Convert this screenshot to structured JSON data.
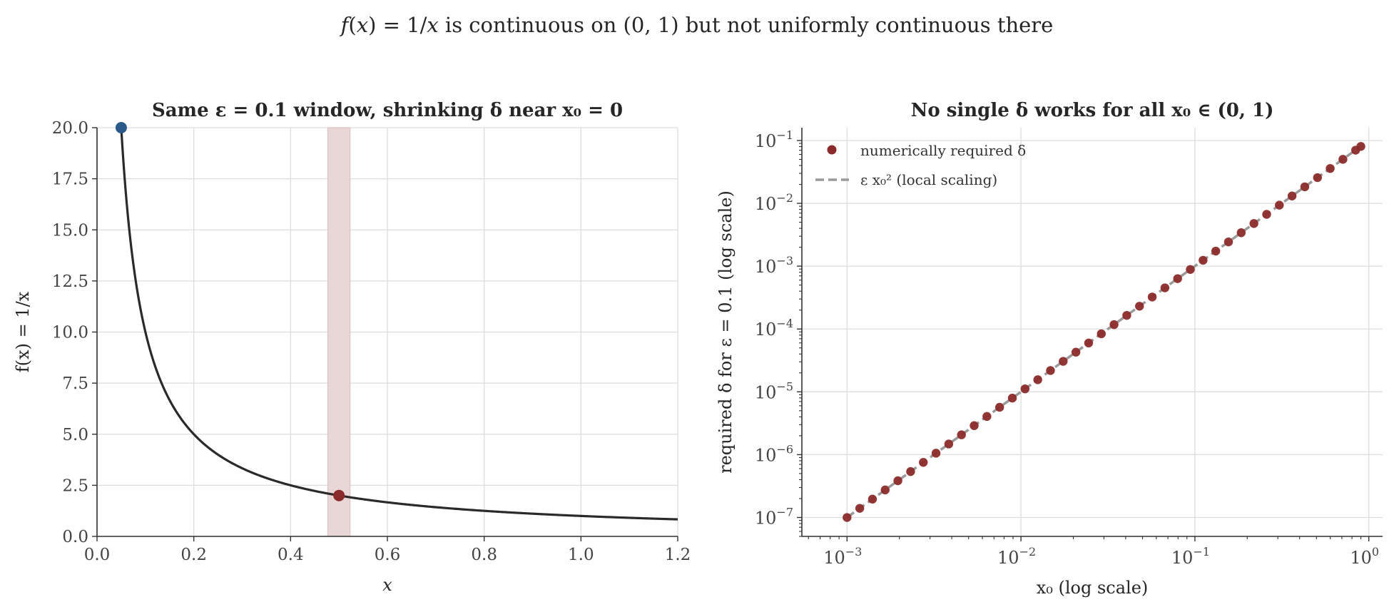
{
  "figure": {
    "suptitle": "f(x) = 1/x is continuous on (0, 1) but not uniformly continuous there"
  },
  "chart_data": [
    {
      "type": "line",
      "title": "Same ε = 0.1 window, shrinking δ near x₀ = 0",
      "xlabel": "x",
      "ylabel": "f(x) = 1/x",
      "xlim": [
        0.0,
        1.2
      ],
      "ylim": [
        0.0,
        20.0
      ],
      "xticks": [
        0.0,
        0.2,
        0.4,
        0.6,
        0.8,
        1.0,
        1.2
      ],
      "xtick_labels": [
        "0.0",
        "0.2",
        "0.4",
        "0.6",
        "0.8",
        "1.0",
        "1.2"
      ],
      "yticks": [
        0.0,
        2.5,
        5.0,
        7.5,
        10.0,
        12.5,
        15.0,
        17.5,
        20.0
      ],
      "ytick_labels": [
        "0.0",
        "2.5",
        "5.0",
        "7.5",
        "10.0",
        "12.5",
        "15.0",
        "17.5",
        "20.0"
      ],
      "grid": true,
      "curve": {
        "function": "1/x",
        "x_start": 0.05,
        "x_end": 1.2,
        "color": "#2a2a2a"
      },
      "band": {
        "x_start": 0.477,
        "x_end": 0.523,
        "color": "#e9d6d7"
      },
      "points": [
        {
          "x": 0.05,
          "y": 20.0,
          "color": "#2b5a8a"
        },
        {
          "x": 0.5,
          "y": 2.0,
          "color": "#8b2a2a"
        }
      ]
    },
    {
      "type": "scatter",
      "title": "No single δ works for all x₀ ∈ (0, 1)",
      "xlabel": "x₀ (log scale)",
      "ylabel": "required δ for ε = 0.1 (log scale)",
      "xscale": "log",
      "yscale": "log",
      "xlim": [
        0.00055,
        1.2
      ],
      "ylim": [
        5e-08,
        0.16
      ],
      "xticks": [
        0.001,
        0.01,
        0.1,
        1.0
      ],
      "xtick_labels": [
        {
          "base": "10",
          "exp": "−3"
        },
        {
          "base": "10",
          "exp": "−2"
        },
        {
          "base": "10",
          "exp": "−1"
        },
        {
          "base": "10",
          "exp": "0"
        }
      ],
      "yticks": [
        1e-07,
        1e-06,
        1e-05,
        0.0001,
        0.001,
        0.01,
        0.1
      ],
      "ytick_labels": [
        {
          "base": "10",
          "exp": "−7"
        },
        {
          "base": "10",
          "exp": "−6"
        },
        {
          "base": "10",
          "exp": "−5"
        },
        {
          "base": "10",
          "exp": "−4"
        },
        {
          "base": "10",
          "exp": "−3"
        },
        {
          "base": "10",
          "exp": "−2"
        },
        {
          "base": "10",
          "exp": "−1"
        }
      ],
      "grid": true,
      "legend_position": "upper-left",
      "series": [
        {
          "name": "numerically required δ",
          "kind": "markers",
          "color": "#8b2a2a",
          "x": [
            0.001,
            0.0011833,
            0.0014003,
            0.001657,
            0.0019608,
            0.0023202,
            0.0027456,
            0.003249,
            0.0038447,
            0.0045495,
            0.0053836,
            0.0063706,
            0.0075385,
            0.0089206,
            0.010556,
            0.012491,
            0.014781,
            0.017491,
            0.020698,
            0.024493,
            0.028983,
            0.034297,
            0.040584,
            0.048025,
            0.056829,
            0.067248,
            0.079577,
            0.094166,
            0.11143,
            0.13186,
            0.15603,
            0.18464,
            0.21849,
            0.25855,
            0.30595,
            0.36204,
            0.42841,
            0.50695,
            0.59989,
            0.70987,
            0.84002,
            0.9
          ],
          "y": [
            9.99e-08,
            1.399e-07,
            1.959e-07,
            2.743e-07,
            3.841e-07,
            5.379e-07,
            7.532e-07,
            1.055e-06,
            1.477e-06,
            2.068e-06,
            2.896e-06,
            4.055e-06,
            5.679e-06,
            7.952e-06,
            1.114e-05,
            1.5586e-05,
            2.1823e-05,
            3.0559e-05,
            4.2791e-05,
            5.9922e-05,
            8.3916e-05,
            0.00011751,
            0.00016456,
            0.00023044,
            0.00032268,
            0.00045186,
            0.00063275,
            0.00088605,
            0.0012407,
            0.0017374,
            0.0024328,
            0.0034066,
            0.0047701,
            0.0066791,
            0.0093515,
            0.013091,
            0.018324,
            0.025645,
            0.035883,
            0.050193,
            0.070174,
            0.08051
          ]
        },
        {
          "name": "ε x₀² (local scaling)",
          "kind": "dashed-line",
          "color": "#9a9a9a",
          "function": "0.1*x^2",
          "x_start": 0.001,
          "x_end": 0.9
        }
      ]
    }
  ]
}
